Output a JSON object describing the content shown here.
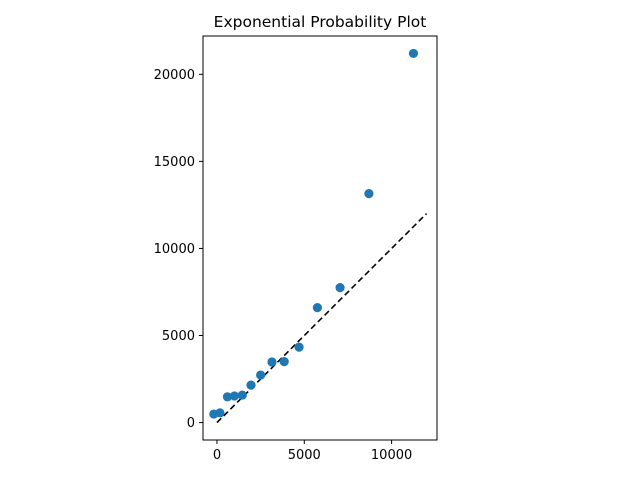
{
  "chart_data": {
    "type": "scatter",
    "title": "Exponential Probability Plot",
    "xlabel": "",
    "ylabel": "",
    "xlim": [
      -800,
      12600
    ],
    "ylim": [
      -1000,
      22200
    ],
    "xticks": [
      0,
      5000,
      10000
    ],
    "yticks": [
      0,
      5000,
      10000,
      15000,
      20000
    ],
    "xtick_labels": [
      "0",
      "5000",
      "10000"
    ],
    "ytick_labels": [
      "0",
      "5000",
      "10000",
      "15000",
      "20000"
    ],
    "grid": false,
    "legend": "none",
    "series": [
      {
        "marker": "circle",
        "color": "#1f77b4",
        "points": [
          {
            "x": -180,
            "y": 490
          },
          {
            "x": 170,
            "y": 560
          },
          {
            "x": 600,
            "y": 1480
          },
          {
            "x": 1000,
            "y": 1530
          },
          {
            "x": 1450,
            "y": 1580
          },
          {
            "x": 1950,
            "y": 2150
          },
          {
            "x": 2500,
            "y": 2730
          },
          {
            "x": 3150,
            "y": 3480
          },
          {
            "x": 3850,
            "y": 3500
          },
          {
            "x": 4700,
            "y": 4330
          },
          {
            "x": 5750,
            "y": 6600
          },
          {
            "x": 7050,
            "y": 7750
          },
          {
            "x": 8700,
            "y": 13150
          },
          {
            "x": 11250,
            "y": 21200
          }
        ]
      }
    ],
    "reference_line": {
      "style": "dashed",
      "color": "#000000",
      "x": [
        0,
        12000
      ],
      "y": [
        0,
        12000
      ]
    }
  }
}
